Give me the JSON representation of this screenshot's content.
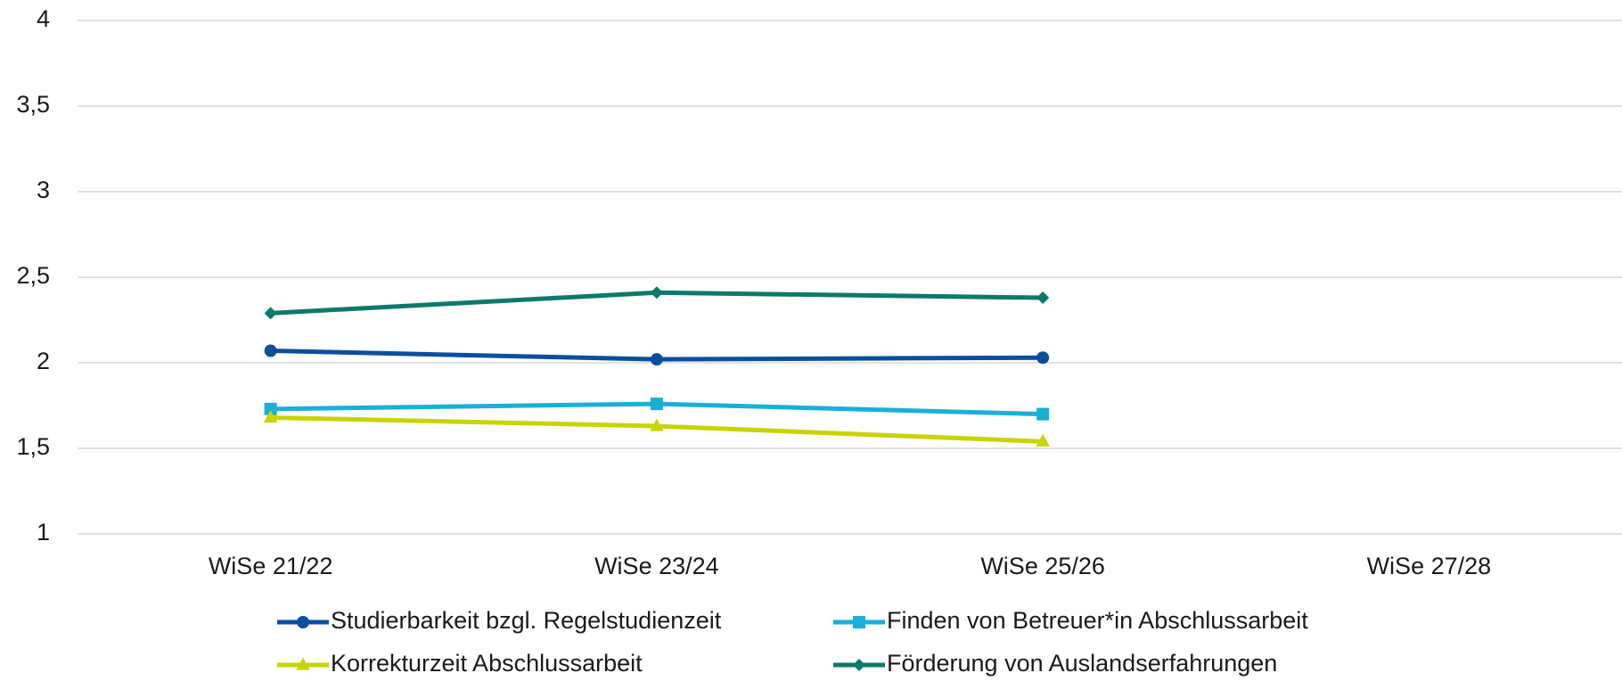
{
  "chart_data": {
    "type": "line",
    "categories": [
      "WiSe 21/22",
      "WiSe 23/24",
      "WiSe 25/26",
      "WiSe 27/28"
    ],
    "series": [
      {
        "name": "Studierbarkeit bzgl. Regelstudienzeit",
        "color": "#0a4f9e",
        "marker": "circle",
        "values": [
          2.07,
          2.02,
          2.03,
          null
        ]
      },
      {
        "name": "Finden von Betreuer*in Abschlussarbeit",
        "color": "#1aafd8",
        "marker": "square",
        "values": [
          1.73,
          1.76,
          1.7,
          null
        ]
      },
      {
        "name": "Korrekturzeit Abschlussarbeit",
        "color": "#c8d400",
        "marker": "triangle",
        "values": [
          1.68,
          1.63,
          1.54,
          null
        ]
      },
      {
        "name": "Förderung von Auslandserfahrungen",
        "color": "#0a7a6a",
        "marker": "diamond",
        "values": [
          2.29,
          2.41,
          2.38,
          null
        ]
      }
    ],
    "ylim": [
      1,
      4
    ],
    "yticks": [
      1,
      {
        "value": 1.5,
        "label": "1,5"
      },
      2,
      {
        "value": 2.5,
        "label": "2,5"
      },
      3,
      {
        "value": 3.5,
        "label": "3,5"
      },
      4
    ],
    "grid": true,
    "legend": "bottom"
  }
}
